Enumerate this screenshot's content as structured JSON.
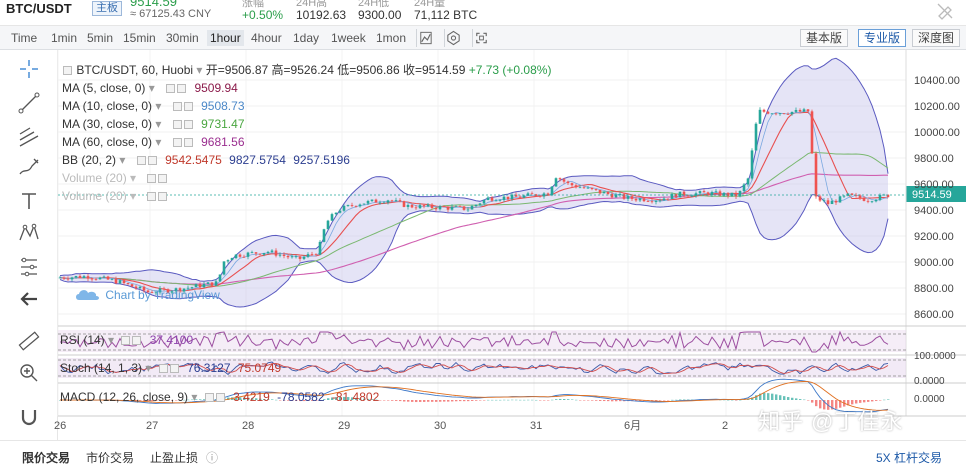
{
  "header": {
    "pair": "BTC/USDT",
    "board": "主板",
    "price": "9514.59",
    "price_cny": "≈ 67125.43 CNY",
    "change_label": "涨幅",
    "change_value": "+0.50%",
    "high_label": "24H高",
    "high_value": "10192.63",
    "low_label": "24H低",
    "low_value": "9300.00",
    "volume_label": "24H量",
    "volume_value": "71,112 BTC"
  },
  "timeframes": [
    "Time",
    "1min",
    "5min",
    "15min",
    "30min",
    "1hour",
    "4hour",
    "1day",
    "1week",
    "1mon"
  ],
  "active_timeframe": "1hour",
  "views": [
    "基本版",
    "专业版",
    "深度图"
  ],
  "active_view": "专业版",
  "legend": {
    "title": "BTC/USDT, 60, Huobi",
    "open": "开=9506.87",
    "high": "高=9526.24",
    "low": "低=9506.86",
    "close": "收=9514.59",
    "change": "+7.73 (+0.08%)",
    "ma5": {
      "name": "MA (5, close, 0)",
      "value": "9509.94",
      "color": "#8b1a4a"
    },
    "ma10": {
      "name": "MA (10, close, 0)",
      "value": "9508.73",
      "color": "#4b88c8"
    },
    "ma30": {
      "name": "MA (30, close, 0)",
      "value": "9731.47",
      "color": "#4aa640"
    },
    "ma60": {
      "name": "MA (60, close, 0)",
      "value": "9681.56",
      "color": "#9a2e8f"
    },
    "bb": {
      "name": "BB (20, 2)",
      "basis": "9542.5475",
      "upper": "9827.5754",
      "lower": "9257.5196"
    },
    "vol1": "Volume (20)",
    "vol2": "Volume (20)"
  },
  "tv_logo": "Chart by TradingView",
  "price_axis": [
    "10400.00",
    "10200.00",
    "10000.00",
    "9800.00",
    "9600.00",
    "9400.00",
    "9200.00",
    "9000.00",
    "8800.00",
    "8600.00"
  ],
  "last_price_tag": "9514.59",
  "rsi": {
    "name": "RSI (14)",
    "value": "37.4100",
    "axis": []
  },
  "stoch": {
    "name": "Stoch (14, 1, 3)",
    "k": "76.3127",
    "d": "75.0749",
    "axis": [
      "100.0000",
      "0.0000"
    ]
  },
  "macd": {
    "name": "MACD (12, 26, close, 9)",
    "hist": "3.4219",
    "macd": "-78.0582",
    "signal": "-81.4802",
    "axis": [
      "0.0000"
    ]
  },
  "date_axis": [
    "26",
    "27",
    "28",
    "29",
    "30",
    "31",
    "6月",
    "2"
  ],
  "watermark": "知乎 @丁佳永",
  "bottom_tabs": [
    "限价交易",
    "市价交易",
    "止盈止损"
  ],
  "bottom_right": "5X 杠杆交易",
  "colors": {
    "up": "#26a69a",
    "down": "#ef5350",
    "bb_fill": "#c6c4ea",
    "accent": "#1e5aa8"
  }
}
